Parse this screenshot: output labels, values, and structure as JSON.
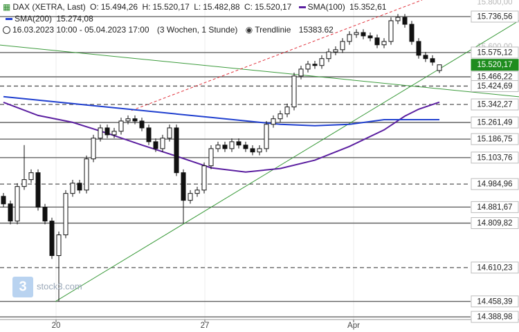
{
  "chart_data": {
    "type": "candlestick",
    "title": "DAX (XETRA, Last)",
    "ohlc_labels": [
      "O:",
      "H:",
      "L:",
      "C:"
    ],
    "ohlc_value_labels": [
      "15.494,26",
      "15.520,17",
      "15.482,88",
      "15.520,17"
    ],
    "period": "16.03.2023 10:00 - 05.04.2023 17:00",
    "interval": "(3 Wochen, 1 Stunde)",
    "trendline_label": "Trendlinie",
    "trendline_value": 15383.62,
    "watermark": "stock3.com",
    "up_color": "#ffffff",
    "down_color": "#111111",
    "candles": {
      "open": [
        14930,
        14896,
        14819,
        14974,
        15005,
        15036,
        14881,
        14819,
        14664,
        14757,
        14943,
        14989,
        14958,
        15098,
        15191,
        15237,
        15206,
        15222,
        15268,
        15278,
        15268,
        15237,
        15175,
        15144,
        15191,
        15237,
        15036,
        14912,
        14943,
        14958,
        15067,
        15144,
        15160,
        15144,
        15175,
        15160,
        15144,
        15129,
        15144,
        15253,
        15278,
        15300,
        15331,
        15470,
        15501,
        15523,
        15517,
        15548,
        15578,
        15588,
        15625,
        15656,
        15665,
        15650,
        15641,
        15610,
        15625,
        15718,
        15733,
        15702,
        15625,
        15563,
        15548,
        15494.26
      ],
      "high": [
        14945,
        14911,
        14989,
        15160,
        15051,
        15051,
        14896,
        14834,
        14772,
        14958,
        15004,
        15004,
        15113,
        15206,
        15252,
        15252,
        15237,
        15283,
        15293,
        15293,
        15283,
        15252,
        15190,
        15206,
        15252,
        15252,
        15051,
        14958,
        14973,
        15082,
        15159,
        15175,
        15175,
        15190,
        15190,
        15175,
        15159,
        15159,
        15268,
        15293,
        15315,
        15346,
        15485,
        15516,
        15538,
        15538,
        15563,
        15593,
        15603,
        15640,
        15671,
        15680,
        15680,
        15665,
        15656,
        15640,
        15733,
        15748,
        15748,
        15717,
        15640,
        15578,
        15563,
        15520.17
      ],
      "low": [
        14881,
        14804,
        14804,
        14959,
        14990,
        14866,
        14804,
        14649,
        14458.39,
        14742,
        14928,
        14943,
        14943,
        15083,
        15176,
        15191,
        15191,
        15207,
        15253,
        15253,
        15222,
        15160,
        15129,
        15129,
        15176,
        15021,
        14809.82,
        14897,
        14928,
        14943,
        15052,
        15129,
        15129,
        15129,
        15145,
        15129,
        15114,
        15114,
        15129,
        15238,
        15263,
        15285,
        15316,
        15455,
        15486,
        15502,
        15502,
        15533,
        15563,
        15573,
        15610,
        15641,
        15635,
        15626,
        15595,
        15595,
        15610,
        15703,
        15687,
        15610,
        15548,
        15533,
        15517,
        15482.88
      ],
      "close": [
        14896,
        14819,
        14974,
        15005,
        15036,
        14881,
        14819,
        14664,
        14757,
        14943,
        14989,
        14958,
        15098,
        15191,
        15237,
        15206,
        15222,
        15268,
        15278,
        15268,
        15237,
        15175,
        15144,
        15191,
        15237,
        15036,
        14912,
        14943,
        14958,
        15067,
        15144,
        15160,
        15144,
        15175,
        15160,
        15144,
        15129,
        15144,
        15253,
        15278,
        15300,
        15331,
        15470,
        15501,
        15523,
        15517,
        15548,
        15578,
        15588,
        15625,
        15656,
        15665,
        15650,
        15641,
        15610,
        15625,
        15718,
        15733,
        15702,
        15625,
        15563,
        15548,
        15532,
        15520.17
      ]
    },
    "series": [
      {
        "name": "SMA(100)",
        "color": "#5b1fa0",
        "value_label": "15.352,61",
        "x": [
          0,
          5,
          10,
          15,
          20,
          25,
          30,
          35,
          40,
          45,
          50,
          55,
          58,
          60,
          63
        ],
        "values": [
          15352,
          15293,
          15262,
          15213,
          15160,
          15110,
          15058,
          15039,
          15055,
          15092,
          15154,
          15228,
          15290,
          15321,
          15352.61
        ]
      },
      {
        "name": "SMA(200)",
        "color": "#1f3fcf",
        "value_label": "15.274,08",
        "x": [
          0,
          10,
          20,
          30,
          40,
          45,
          50,
          55,
          63
        ],
        "values": [
          15377,
          15346,
          15315,
          15284,
          15253,
          15247,
          15253,
          15274,
          15274.08
        ]
      }
    ],
    "trendlines": [
      {
        "color": "#3a9a3a",
        "dashed": false,
        "x": [
          7.5,
          74.5
        ],
        "values": [
          14458,
          15718
        ]
      },
      {
        "color": "#3a9a3a",
        "dashed": false,
        "x": [
          -0.5,
          74.5
        ],
        "values": [
          15609,
          15377
        ]
      },
      {
        "color": "#e0303a",
        "dashed": true,
        "x": [
          18.5,
          60.5
        ],
        "values": [
          15315,
          15811
        ]
      }
    ],
    "levels": [
      {
        "value": 15736.56,
        "label": "15.736,56",
        "style": "solid"
      },
      {
        "value": 15575.12,
        "label": "15.575,12",
        "style": "solid"
      },
      {
        "value": 15520.17,
        "label": "15.520,17",
        "style": "current",
        "color": "#1e8c1e"
      },
      {
        "value": 15466.22,
        "label": "15.466,22",
        "style": "solid"
      },
      {
        "value": 15424.69,
        "label": "15.424,69",
        "style": "dashed"
      },
      {
        "value": 15342.27,
        "label": "15.342,27",
        "style": "dashed"
      },
      {
        "value": 15261.49,
        "label": "15.261,49",
        "style": "solid"
      },
      {
        "value": 15186.75,
        "label": "15.186,75",
        "style": "solid"
      },
      {
        "value": 15103.76,
        "label": "15.103,76",
        "style": "solid"
      },
      {
        "value": 14984.96,
        "label": "14.984,96",
        "style": "dashed"
      },
      {
        "value": 14881.67,
        "label": "14.881,67",
        "style": "solid"
      },
      {
        "value": 14809.82,
        "label": "14.809,82",
        "style": "solid"
      },
      {
        "value": 14610.23,
        "label": "14.610,23",
        "style": "dashed"
      },
      {
        "value": 14458.39,
        "label": "14.458,39",
        "style": "solid"
      },
      {
        "value": 14388.98,
        "label": "14.388,98",
        "style": "solid"
      }
    ],
    "ylim": [
      14377,
      15811
    ],
    "yticks": [
      {
        "value": 15800,
        "label": "15.800,00"
      },
      {
        "value": 15600,
        "label": "15.600,00"
      }
    ],
    "xlim": [
      -0.5,
      67.5
    ],
    "xticks": [
      {
        "value": 7.6,
        "label": "20"
      },
      {
        "value": 29.1,
        "label": "27"
      },
      {
        "value": 50.6,
        "label": "Apr"
      }
    ]
  }
}
